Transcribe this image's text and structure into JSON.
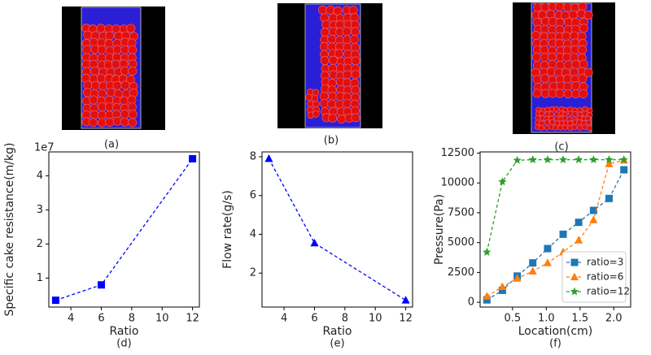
{
  "panels": [
    {
      "label": "(a)"
    },
    {
      "label": "(b)"
    },
    {
      "label": "(c)"
    }
  ],
  "chart_data": [
    {
      "type": "line",
      "caption": "(d)",
      "x_label": "Ratio",
      "y_label": "Specific cake resistance(m/kg)",
      "y_offset_label": "1e7",
      "x": [
        3,
        6,
        12
      ],
      "xlim": [
        2.55,
        12.45
      ],
      "xticks": [
        4,
        6,
        8,
        10,
        12
      ],
      "ylim": [
        0.15,
        4.7
      ],
      "yticks": [
        1,
        2,
        3,
        4
      ],
      "series": [
        {
          "color": "#0000ff",
          "marker": "square",
          "values": [
            0.35,
            0.8,
            4.5
          ]
        }
      ]
    },
    {
      "type": "line",
      "caption": "(e)",
      "x_label": "Ratio",
      "y_label": "Flow rate(g/s)",
      "x": [
        3,
        6,
        12
      ],
      "xlim": [
        2.55,
        12.45
      ],
      "xticks": [
        4,
        6,
        8,
        10,
        12
      ],
      "ylim": [
        0.25,
        8.25
      ],
      "yticks": [
        2,
        4,
        6,
        8
      ],
      "series": [
        {
          "color": "#0000ff",
          "marker": "triangle",
          "values": [
            7.9,
            3.55,
            0.6
          ]
        }
      ]
    },
    {
      "type": "line",
      "caption": "(f)",
      "x_label": "Location(cm)",
      "y_label": "Pressure(Pa)",
      "legend": "lower right",
      "x": [
        0.12,
        0.35,
        0.57,
        0.8,
        1.02,
        1.25,
        1.48,
        1.7,
        1.93,
        2.15
      ],
      "xlim": [
        0.02,
        2.25
      ],
      "xticks": [
        0.5,
        {
          "value": 1,
          "label": "1.0"
        },
        1.5,
        {
          "value": 2,
          "label": "2.0"
        }
      ],
      "ylim": [
        -400,
        12600
      ],
      "yticks": [
        0,
        2500,
        5000,
        7500,
        10000,
        12500
      ],
      "series": [
        {
          "name": "ratio=3",
          "color": "#1f77b4",
          "marker": "square",
          "values": [
            200,
            1000,
            2200,
            3300,
            4500,
            5700,
            6700,
            7700,
            8700,
            11100
          ]
        },
        {
          "name": "ratio=6",
          "color": "#ff7f0e",
          "marker": "triangle",
          "values": [
            500,
            1300,
            2000,
            2600,
            3300,
            4200,
            5200,
            6900,
            11600,
            11900
          ]
        },
        {
          "name": "ratio=12",
          "color": "#2ca02c",
          "marker": "star",
          "values": [
            4200,
            10100,
            11900,
            11950,
            11950,
            11950,
            11950,
            11950,
            11950,
            11950
          ]
        }
      ]
    }
  ]
}
